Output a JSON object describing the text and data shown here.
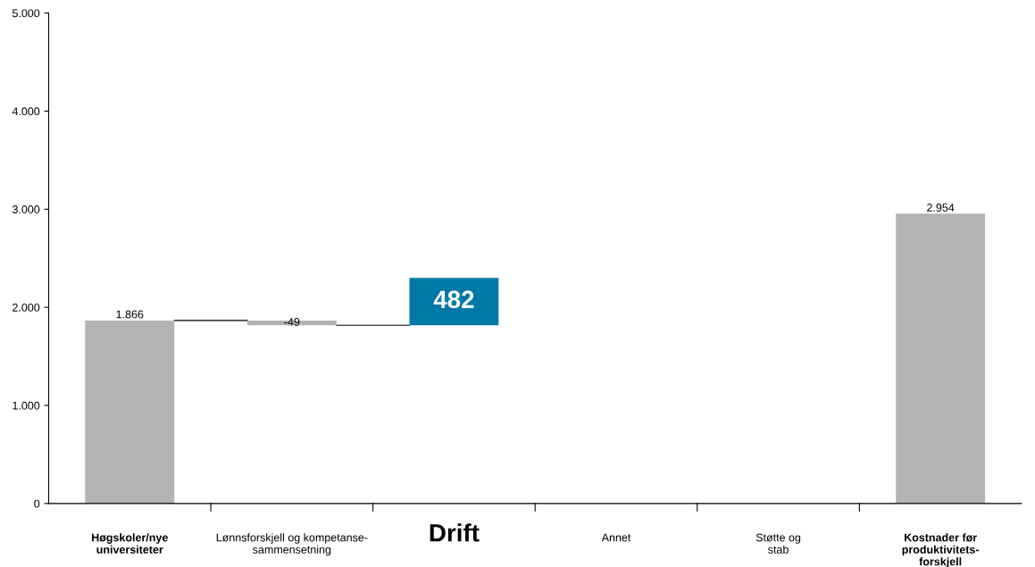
{
  "chart_data": {
    "type": "bar",
    "categories": [
      "Høgskoler/nye\nuniversiteter",
      "Lønnsforskjell og kompetanse-\nsammensetning",
      "Drift",
      "Annet",
      "Støtte og\nstab",
      "Kostnader før\nproduktivitets-\nforskjell"
    ],
    "values": [
      1866,
      -49,
      482,
      null,
      null,
      2954
    ],
    "base": [
      0,
      1866,
      1817,
      null,
      null,
      0
    ],
    "colors": [
      "#b3b3b3",
      "#b3b3b3",
      "#0079a6",
      null,
      null,
      "#b3b3b3"
    ],
    "value_labels": [
      "1.866",
      "-49",
      "482",
      null,
      null,
      "2.954"
    ],
    "ylim": [
      0,
      5000
    ],
    "yticks": [
      {
        "value": 0,
        "label": "0"
      },
      {
        "value": 1000,
        "label": "1.000"
      },
      {
        "value": 2000,
        "label": "2.000"
      },
      {
        "value": 3000,
        "label": "3.000"
      },
      {
        "value": 4000,
        "label": "4.000"
      },
      {
        "value": 5000,
        "label": "5.000"
      }
    ],
    "grid": false,
    "legend": false
  }
}
